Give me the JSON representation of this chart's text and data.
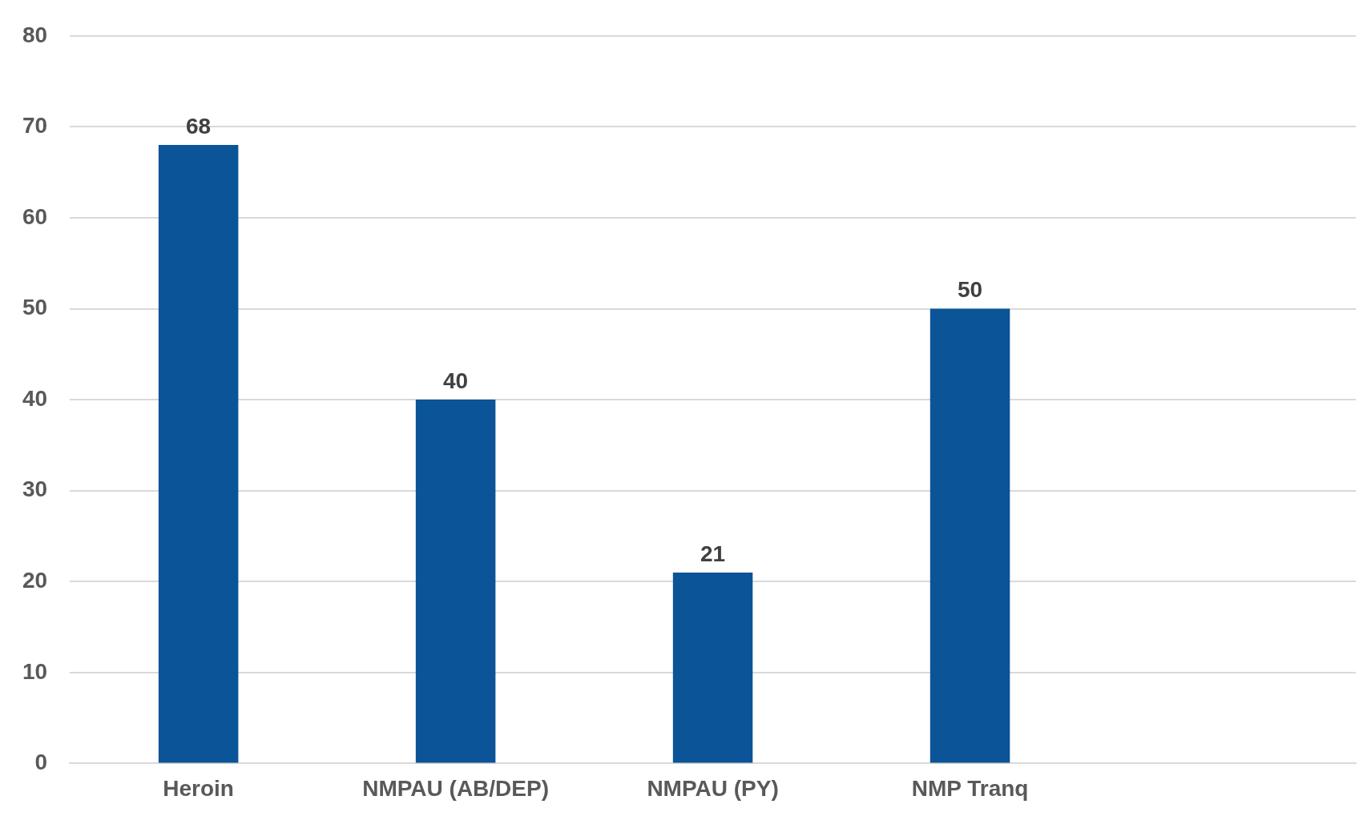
{
  "chart_data": {
    "type": "bar",
    "categories": [
      "Heroin",
      "NMPAU (AB/DEP)",
      "NMPAU (PY)",
      "NMP Tranq",
      null
    ],
    "values": [
      68,
      40,
      21,
      50,
      null
    ],
    "color": "#0a5497",
    "ylim": [
      0,
      80
    ],
    "yticks": [
      0,
      10,
      20,
      30,
      40,
      50,
      60,
      70,
      80
    ],
    "grid": "y",
    "data_labels": true,
    "legend": false
  }
}
